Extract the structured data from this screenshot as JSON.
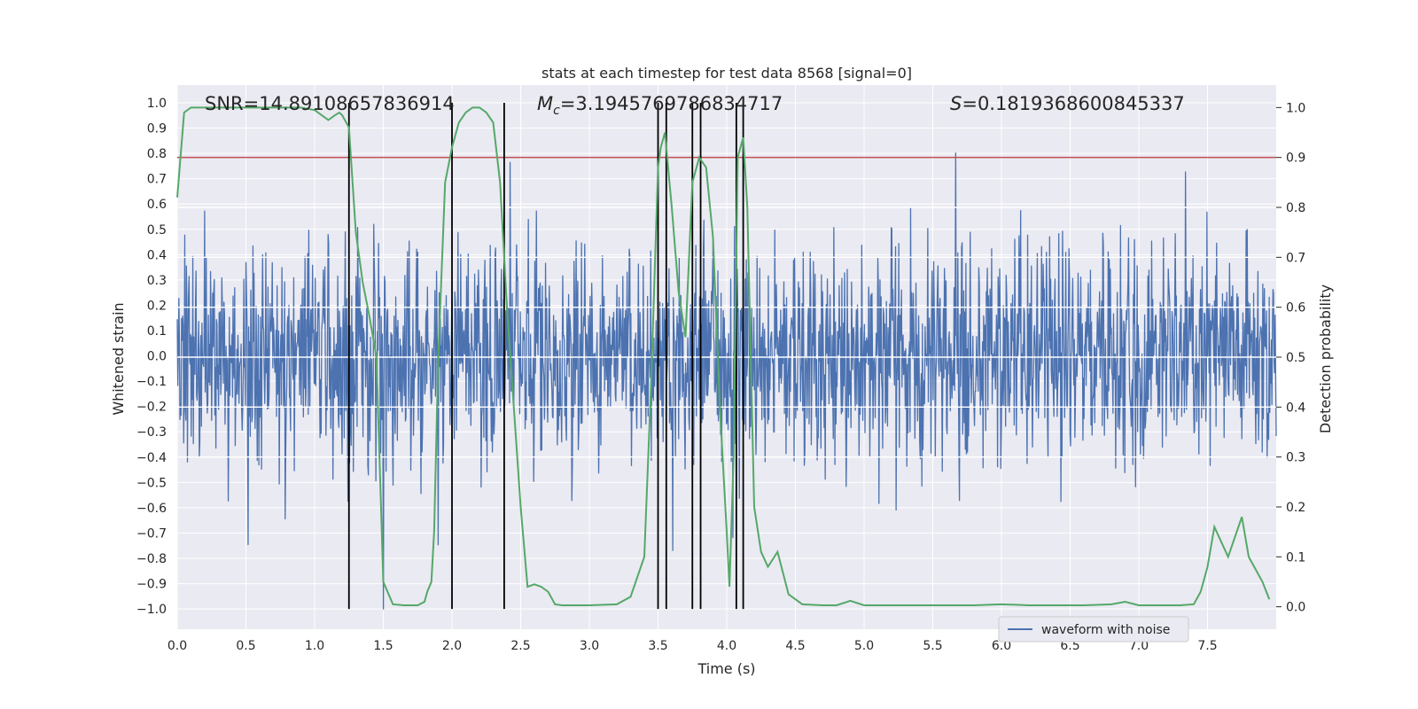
{
  "chart_data": {
    "type": "line",
    "title": "stats at each timestep for test data 8568 [signal=0]",
    "xlabel": "Time (s)",
    "ylabel": "Whitened strain",
    "y2label": "Detection probability",
    "xlim": [
      0.0,
      8.0
    ],
    "ylim": [
      -1.08,
      1.07
    ],
    "y2lim": [
      -0.045,
      1.045
    ],
    "x_ticks": [
      0.0,
      0.5,
      1.0,
      1.5,
      2.0,
      2.5,
      3.0,
      3.5,
      4.0,
      4.5,
      5.0,
      5.5,
      6.0,
      6.5,
      7.0,
      7.5
    ],
    "x_tick_labels": [
      "0.0",
      "0.5",
      "1.0",
      "1.5",
      "2.0",
      "2.5",
      "3.0",
      "3.5",
      "4.0",
      "4.5",
      "5.0",
      "5.5",
      "6.0",
      "6.5",
      "7.0",
      "7.5"
    ],
    "y_ticks": [
      1.0,
      0.9,
      0.8,
      0.7,
      0.6,
      0.5,
      0.4,
      0.3,
      0.2,
      0.1,
      0.0,
      -0.1,
      -0.2,
      -0.3,
      -0.4,
      -0.5,
      -0.6,
      -0.7,
      -0.8,
      -0.9,
      -1.0
    ],
    "y_tick_labels": [
      "1.0",
      "0.9",
      "0.8",
      "0.7",
      "0.6",
      "0.5",
      "0.4",
      "0.3",
      "0.2",
      "0.1",
      "0.0",
      "−0.1",
      "−0.2",
      "−0.3",
      "−0.4",
      "−0.5",
      "−0.6",
      "−0.7",
      "−0.8",
      "−0.9",
      "−1.0"
    ],
    "y2_ticks": [
      1.0,
      0.9,
      0.8,
      0.7,
      0.6,
      0.5,
      0.4,
      0.3,
      0.2,
      0.1,
      0.0
    ],
    "y2_tick_labels": [
      "1.0",
      "0.9",
      "0.8",
      "0.7",
      "0.6",
      "0.5",
      "0.4",
      "0.3",
      "0.2",
      "0.1",
      "0.0"
    ],
    "annotations": {
      "snr": "SNR=14.89108657836914",
      "mc_symbol": "M",
      "mc_sub": "c",
      "mc_value": "=3.1945769786834717",
      "s_symbol": "S",
      "s_value": "=0.1819368600845337"
    },
    "threshold": {
      "value": 0.9,
      "axis": "y2",
      "color": "#c44e52"
    },
    "detection_markers_x": [
      1.25,
      2.0,
      2.38,
      3.5,
      3.56,
      3.75,
      3.81,
      4.07,
      4.12
    ],
    "white_hlines_y2": [
      0.8,
      0.7,
      0.6,
      0.5,
      0.4,
      0.3
    ],
    "series": [
      {
        "name": "waveform with noise",
        "axis": "y",
        "color": "#4c72b0",
        "n_samples": 2048,
        "noise_std": 0.22,
        "y_range_observed": [
          -1.0,
          0.96
        ]
      },
      {
        "name": "detection probability",
        "axis": "y2",
        "color": "#55a868",
        "x": [
          0.0,
          0.05,
          0.1,
          0.2,
          0.3,
          0.5,
          0.7,
          0.9,
          1.0,
          1.05,
          1.1,
          1.15,
          1.18,
          1.2,
          1.22,
          1.25,
          1.3,
          1.35,
          1.4,
          1.45,
          1.5,
          1.57,
          1.65,
          1.75,
          1.8,
          1.82,
          1.85,
          1.87,
          1.9,
          1.95,
          2.0,
          2.05,
          2.1,
          2.15,
          2.2,
          2.25,
          2.3,
          2.35,
          2.4,
          2.45,
          2.5,
          2.55,
          2.6,
          2.65,
          2.7,
          2.75,
          2.8,
          2.9,
          3.0,
          3.2,
          3.3,
          3.4,
          3.45,
          3.5,
          3.52,
          3.55,
          3.57,
          3.6,
          3.65,
          3.7,
          3.75,
          3.8,
          3.85,
          3.9,
          3.95,
          4.0,
          4.02,
          4.05,
          4.08,
          4.12,
          4.15,
          4.2,
          4.25,
          4.3,
          4.37,
          4.45,
          4.55,
          4.7,
          4.8,
          4.9,
          5.0,
          5.2,
          5.4,
          5.6,
          5.8,
          6.0,
          6.2,
          6.4,
          6.6,
          6.8,
          6.9,
          7.0,
          7.2,
          7.3,
          7.4,
          7.45,
          7.5,
          7.55,
          7.6,
          7.65,
          7.7,
          7.75,
          7.8,
          7.9,
          7.95
        ],
        "y": [
          0.82,
          0.99,
          1.0,
          1.0,
          1.0,
          1.0,
          1.0,
          1.0,
          0.995,
          0.985,
          0.975,
          0.985,
          0.99,
          0.985,
          0.975,
          0.96,
          0.75,
          0.65,
          0.58,
          0.5,
          0.05,
          0.005,
          0.003,
          0.003,
          0.01,
          0.03,
          0.05,
          0.15,
          0.5,
          0.85,
          0.92,
          0.97,
          0.99,
          1.0,
          1.0,
          0.99,
          0.97,
          0.85,
          0.6,
          0.4,
          0.2,
          0.04,
          0.045,
          0.04,
          0.03,
          0.005,
          0.003,
          0.003,
          0.003,
          0.005,
          0.02,
          0.1,
          0.45,
          0.88,
          0.92,
          0.95,
          0.89,
          0.8,
          0.63,
          0.54,
          0.85,
          0.9,
          0.88,
          0.74,
          0.4,
          0.15,
          0.04,
          0.3,
          0.9,
          0.94,
          0.8,
          0.2,
          0.11,
          0.08,
          0.11,
          0.025,
          0.005,
          0.003,
          0.003,
          0.012,
          0.003,
          0.003,
          0.003,
          0.003,
          0.003,
          0.005,
          0.003,
          0.003,
          0.003,
          0.005,
          0.01,
          0.003,
          0.003,
          0.003,
          0.005,
          0.03,
          0.08,
          0.16,
          0.13,
          0.1,
          0.14,
          0.18,
          0.1,
          0.05,
          0.015
        ]
      }
    ],
    "legend": {
      "label": "waveform with noise",
      "location": "bottom-right"
    },
    "grid": true
  }
}
